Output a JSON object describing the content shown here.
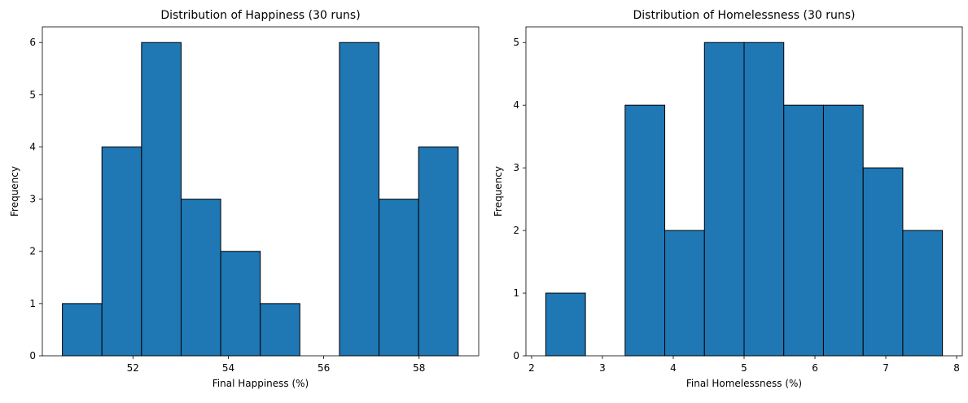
{
  "chart_data": [
    {
      "type": "bar",
      "title": "Distribution of Happiness (30 runs)",
      "xlabel": "Final Happiness (%)",
      "ylabel": "Frequency",
      "xlim": [
        50.1,
        59.25
      ],
      "ylim": [
        0,
        6.3
      ],
      "xticks": [
        52,
        54,
        56,
        58
      ],
      "yticks": [
        0,
        1,
        2,
        3,
        4,
        5,
        6
      ],
      "bin_edges": [
        50.52,
        51.35,
        52.18,
        53.01,
        53.84,
        54.67,
        55.5,
        56.33,
        57.16,
        57.99,
        58.82
      ],
      "values": [
        1,
        4,
        6,
        3,
        2,
        1,
        0,
        6,
        3,
        4
      ],
      "color": "#1f77b4",
      "grid": false
    },
    {
      "type": "bar",
      "title": "Distribution of Homelessness (30 runs)",
      "xlabel": "Final Homelessness (%)",
      "ylabel": "Frequency",
      "xlim": [
        1.92,
        8.08
      ],
      "ylim": [
        0,
        5.25
      ],
      "xticks": [
        2,
        3,
        4,
        5,
        6,
        7,
        8
      ],
      "yticks": [
        0,
        1,
        2,
        3,
        4,
        5
      ],
      "bin_edges": [
        2.2,
        2.76,
        3.32,
        3.88,
        4.44,
        5.0,
        5.56,
        6.12,
        6.68,
        7.24,
        7.8
      ],
      "values": [
        1,
        0,
        4,
        2,
        5,
        5,
        4,
        4,
        3,
        2
      ],
      "color": "#1f77b4",
      "grid": false
    }
  ]
}
